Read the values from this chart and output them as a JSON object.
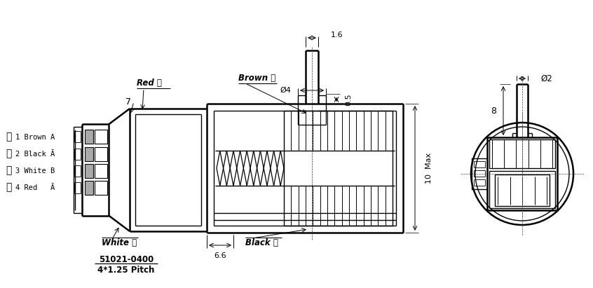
{
  "bg_color": "#ffffff",
  "line_color": "#000000",
  "fig_width": 8.46,
  "fig_height": 4.11,
  "dpi": 100,
  "annotations": {
    "red_label": "Red 红",
    "brown_label": "Brown 棕",
    "white_label": "White 白",
    "black_label": "Black 黑",
    "connector_label_1": "51021-0400",
    "connector_label_2": "4*1.25 Pitch",
    "dim_7": "7",
    "dim_6_6": "6.6",
    "dim_1_6": "1.6",
    "dim_0_5": "0.5",
    "dim_phi4": "Ø4",
    "dim_10max": "10  Max",
    "dim_phi2": "Ø2",
    "dim_8": "8",
    "wire_1": "1 Brown A",
    "wire_2": "2 Black Ā",
    "wire_3": "3 White B",
    "wire_4": "4 Red   Ā",
    "chinese_1": "棕",
    "chinese_2": "黑",
    "chinese_3": "白",
    "chinese_4": "红"
  }
}
